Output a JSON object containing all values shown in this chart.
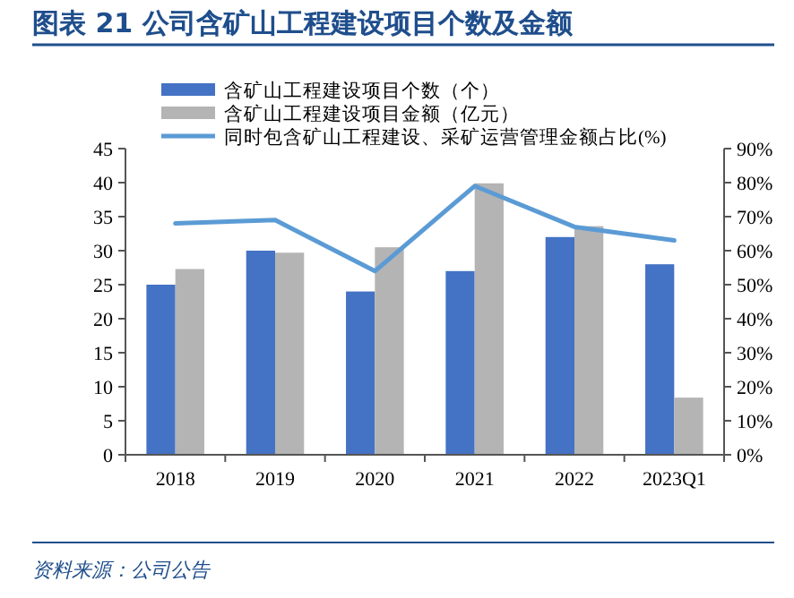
{
  "chart_data": {
    "type": "bar",
    "title": "图表 21   公司含矿山工程建设项目个数及金额",
    "categories": [
      "2018",
      "2019",
      "2020",
      "2021",
      "2022",
      "2023Q1"
    ],
    "series": [
      {
        "name": "含矿山工程建设项目个数（个）",
        "color": "#4472c4",
        "values": [
          25,
          30,
          24,
          27,
          32,
          28
        ]
      },
      {
        "name": "含矿山工程建设项目金额（亿元）",
        "color": "#b4b4b4",
        "values": [
          27.3,
          29.7,
          30.5,
          39.9,
          33.6,
          8.4
        ]
      },
      {
        "name": "同时包含矿山工程建设、采矿运营管理金额占比(%)",
        "type": "line",
        "axis": "y2",
        "color": "#5b9bd5",
        "values": [
          68,
          69,
          54,
          79,
          67,
          63
        ]
      }
    ],
    "ylim": [
      0,
      45
    ],
    "yticks": [
      0,
      5,
      10,
      15,
      20,
      25,
      30,
      35,
      40,
      45
    ],
    "y2lim": [
      0,
      90
    ],
    "y2ticks": [
      {
        "value": 0,
        "label": "0%"
      },
      {
        "value": 10,
        "label": "10%"
      },
      {
        "value": 20,
        "label": "20%"
      },
      {
        "value": 30,
        "label": "30%"
      },
      {
        "value": 40,
        "label": "40%"
      },
      {
        "value": 50,
        "label": "50%"
      },
      {
        "value": 60,
        "label": "60%"
      },
      {
        "value": 70,
        "label": "70%"
      },
      {
        "value": 80,
        "label": "80%"
      },
      {
        "value": 90,
        "label": "90%"
      }
    ],
    "legend": "top",
    "grid": false,
    "marker": "none",
    "line_style": "solid",
    "annotations": [
      "资料来源：公司公告"
    ]
  }
}
